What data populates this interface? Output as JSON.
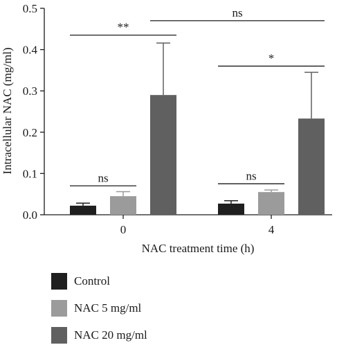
{
  "chart_data": {
    "type": "bar",
    "xlabel": "NAC treatment time (h)",
    "ylabel": "Intracellular NAC (mg/ml)",
    "ylim": [
      0,
      0.5
    ],
    "yticks": [
      "0.0",
      "0.1",
      "0.2",
      "0.3",
      "0.4",
      "0.5"
    ],
    "categories": [
      "0",
      "4"
    ],
    "series": [
      {
        "name": "Control",
        "color": "#1f1f1f",
        "values": [
          0.022,
          0.027
        ],
        "errors": [
          0.006,
          0.007
        ]
      },
      {
        "name": "NAC 5 mg/ml",
        "color": "#9b9b9b",
        "values": [
          0.045,
          0.055
        ],
        "errors": [
          0.011,
          0.005
        ]
      },
      {
        "name": "NAC 20 mg/ml",
        "color": "#606060",
        "values": [
          0.29,
          0.233
        ],
        "errors": [
          0.126,
          0.112
        ]
      }
    ],
    "annotations": [
      {
        "label": "ns",
        "from": {
          "group": 0,
          "series": 0
        },
        "to": {
          "group": 0,
          "series": 1
        },
        "y": 0.07
      },
      {
        "label": "**",
        "from": {
          "group": 0,
          "series": 0
        },
        "to": {
          "group": 0,
          "series": 2
        },
        "y": 0.435
      },
      {
        "label": "ns",
        "from": {
          "group": 0,
          "series": 2
        },
        "to": {
          "group": 1,
          "series": 2
        },
        "y": 0.47
      },
      {
        "label": "*",
        "from": {
          "group": 1,
          "series": 0
        },
        "to": {
          "group": 1,
          "series": 2
        },
        "y": 0.36
      },
      {
        "label": "ns",
        "from": {
          "group": 1,
          "series": 0
        },
        "to": {
          "group": 1,
          "series": 1
        },
        "y": 0.075
      }
    ],
    "legend_position": "bottom-left"
  }
}
